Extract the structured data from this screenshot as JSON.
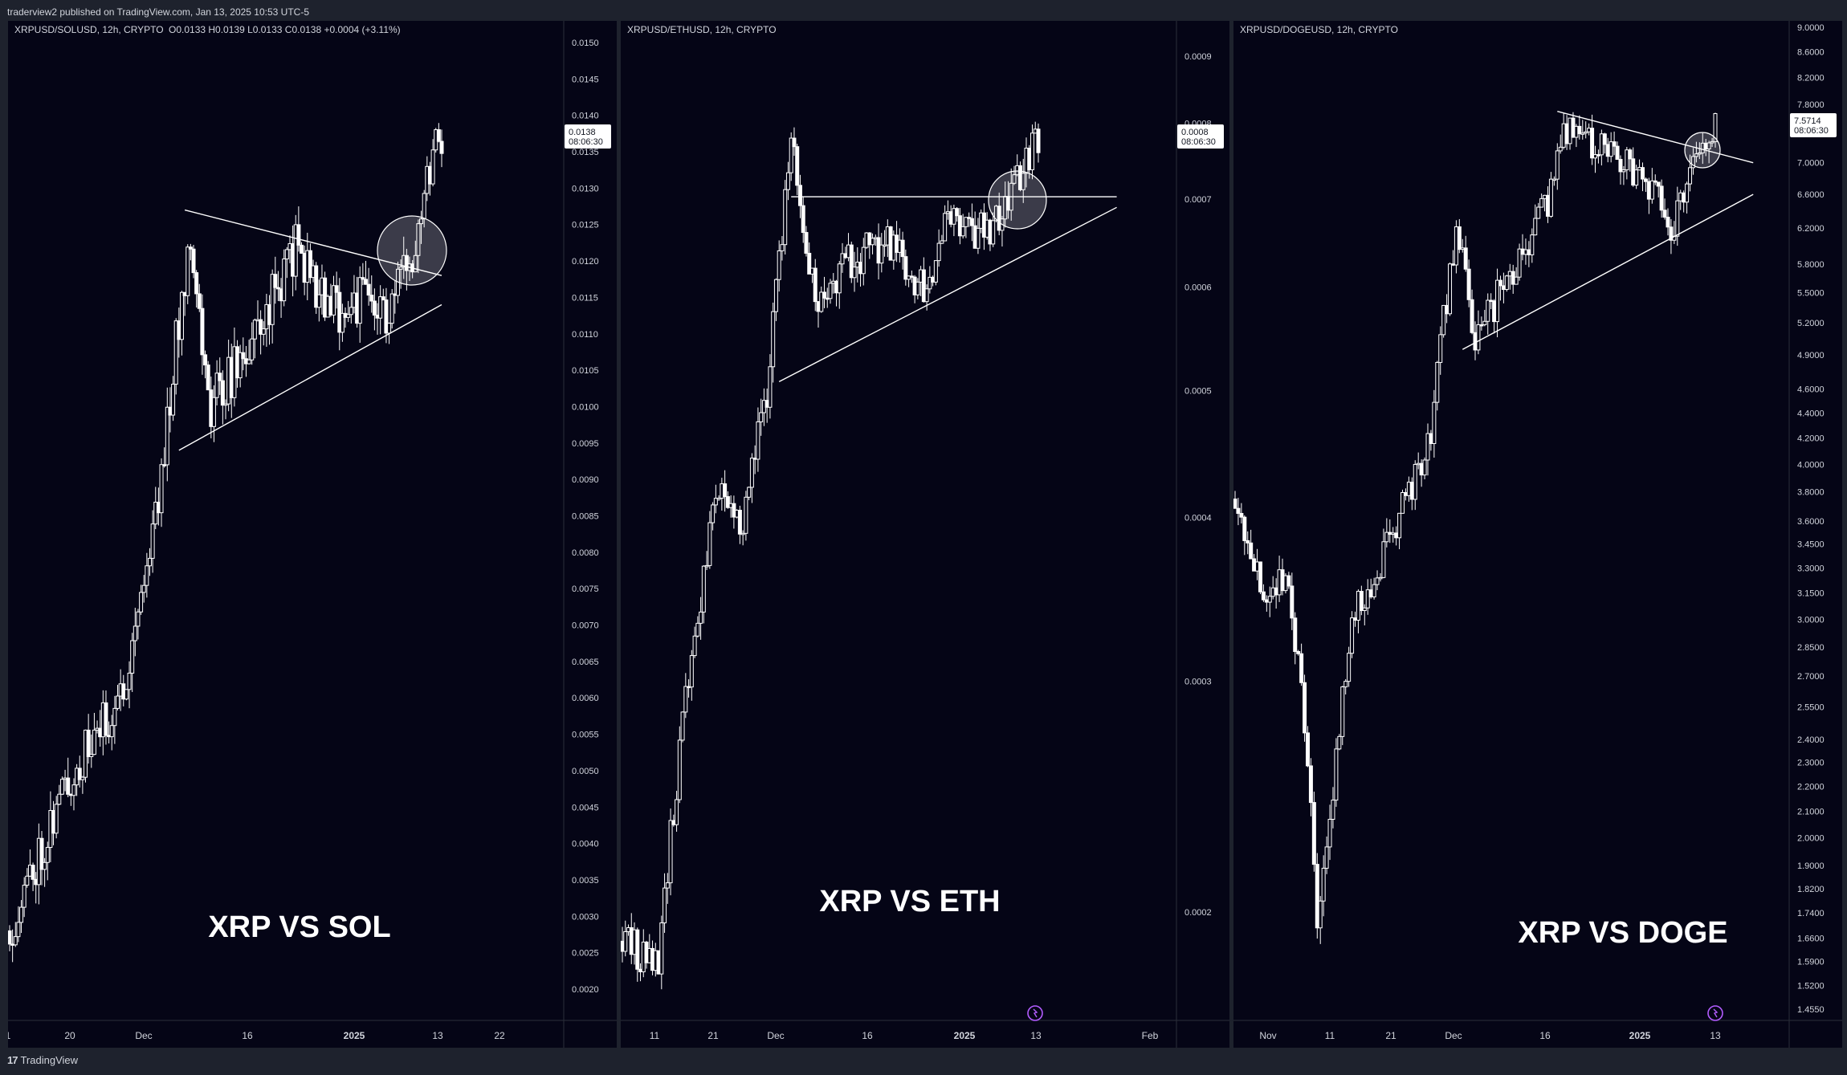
{
  "publisher_line": "traderview2 published on TradingView.com, Jan 13, 2025 10:53 UTC-5",
  "footer_brand": "TradingView",
  "colors": {
    "pane_bg": "#050516",
    "frame_bg": "#1e222d",
    "candle": "#ffffff",
    "text": "#d1d4dc",
    "axis_line": "#2a2e39",
    "badge_bg": "#ffffff",
    "badge_text": "#131722",
    "highlight_circle": "rgba(255,255,255,0.22)",
    "replay_icon": "#b25cff"
  },
  "panes": [
    {
      "header": "XRPUSD/SOLUSD, 12h, CRYPTO",
      "ohlc": {
        "o": "O0.0133",
        "h": "H0.0139",
        "l": "L0.0133",
        "c": "C0.0138",
        "chg": "+0.0004 (+3.11%)"
      },
      "label": "XRP VS SOL",
      "price_badge": {
        "price": "0.0138",
        "timer": "08:06:30"
      },
      "y_ticks": [
        "0.0150",
        "0.0145",
        "0.0140",
        "0.0135",
        "0.0130",
        "0.0125",
        "0.0120",
        "0.0115",
        "0.0110",
        "0.0105",
        "0.0100",
        "0.0095",
        "0.0090",
        "0.0085",
        "0.0080",
        "0.0075",
        "0.0070",
        "0.0065",
        "0.0060",
        "0.0055",
        "0.0050",
        "0.0045",
        "0.0040",
        "0.0035",
        "0.0030",
        "0.0025",
        "0.0020"
      ],
      "x_ticks": [
        "1",
        "20",
        "Dec",
        "16",
        "2025",
        "13",
        "22"
      ],
      "bold_x_tick": "2025",
      "show_replay_icon": false
    },
    {
      "header": "XRPUSD/ETHUSD, 12h, CRYPTO",
      "label": "XRP VS ETH",
      "price_badge": {
        "price": "0.0008",
        "timer": "08:06:30"
      },
      "y_ticks": [
        "0.0009",
        "0.0008",
        "0.0007",
        "0.0006",
        "0.0005",
        "0.0004",
        "0.0003",
        "0.0002"
      ],
      "x_ticks": [
        "11",
        "21",
        "Dec",
        "16",
        "2025",
        "13",
        "Feb"
      ],
      "bold_x_tick": "2025",
      "show_replay_icon": true
    },
    {
      "header": "XRPUSD/DOGEUSD, 12h, CRYPTO",
      "label": "XRP VS DOGE",
      "price_badge": {
        "price": "7.5714",
        "timer": "08:06:30"
      },
      "y_ticks": [
        "9.0000",
        "8.6000",
        "8.2000",
        "7.8000",
        "7.0000",
        "6.6000",
        "6.2000",
        "5.8000",
        "5.5000",
        "5.2000",
        "4.9000",
        "4.6000",
        "4.4000",
        "4.2000",
        "4.0000",
        "3.8000",
        "3.6000",
        "3.4500",
        "3.3000",
        "3.1500",
        "3.0000",
        "2.8500",
        "2.7000",
        "2.5500",
        "2.4000",
        "2.3000",
        "2.2000",
        "2.1000",
        "2.0000",
        "1.9000",
        "1.8200",
        "1.7400",
        "1.6600",
        "1.5900",
        "1.5200",
        "1.4550"
      ],
      "x_ticks": [
        "Nov",
        "11",
        "21",
        "Dec",
        "16",
        "2025",
        "13"
      ],
      "bold_x_tick": "2025",
      "show_replay_icon": true
    }
  ],
  "chart_data": [
    {
      "type": "candlestick",
      "title": "XRPUSD/SOLUSD, 12h, CRYPTO",
      "ylim": [
        0.0015,
        0.0155
      ],
      "approx_close_path": [
        [
          "Nov 1",
          0.0028
        ],
        [
          "Nov 10",
          0.0047
        ],
        [
          "Nov 20",
          0.006
        ],
        [
          "Nov 26",
          0.0085
        ],
        [
          "Dec 2",
          0.0125
        ],
        [
          "Dec 5",
          0.01
        ],
        [
          "Dec 12",
          0.0108
        ],
        [
          "Dec 16",
          0.0115
        ],
        [
          "Dec 20",
          0.0122
        ],
        [
          "Dec 26",
          0.0113
        ],
        [
          "Jan 1",
          0.0115
        ],
        [
          "Jan 5",
          0.0112
        ],
        [
          "Jan 9",
          0.0122
        ],
        [
          "Jan 13",
          0.0138
        ]
      ],
      "annotations": [
        {
          "kind": "trendline",
          "from": [
            "Dec 1",
            0.0127
          ],
          "to": [
            "Jan 14",
            0.0118
          ]
        },
        {
          "kind": "trendline",
          "from": [
            "Nov 30",
            0.0094
          ],
          "to": [
            "Jan 14",
            0.0114
          ]
        },
        {
          "kind": "circle",
          "center": [
            "Jan 10",
            0.0121
          ]
        }
      ]
    },
    {
      "type": "candlestick",
      "title": "XRPUSD/ETHUSD, 12h, CRYPTO",
      "ylim": [
        0.00015,
        0.00095
      ],
      "approx_close_path": [
        [
          "Nov 5",
          0.00019
        ],
        [
          "Nov 10",
          0.00018
        ],
        [
          "Nov 15",
          0.0003
        ],
        [
          "Nov 20",
          0.00042
        ],
        [
          "Nov 24",
          0.0004
        ],
        [
          "Nov 28",
          0.0005
        ],
        [
          "Dec 2",
          0.00077
        ],
        [
          "Dec 6",
          0.00058
        ],
        [
          "Dec 12",
          0.00063
        ],
        [
          "Dec 18",
          0.00065
        ],
        [
          "Dec 24",
          0.0006
        ],
        [
          "Dec 28",
          0.00067
        ],
        [
          "Jan 3",
          0.00066
        ],
        [
          "Jan 8",
          0.00071
        ],
        [
          "Jan 13",
          0.0008
        ]
      ],
      "annotations": [
        {
          "kind": "horizontal",
          "level": 0.000703
        },
        {
          "kind": "trendline",
          "from": [
            "Nov 30",
            0.000508
          ],
          "to": [
            "Jan 25",
            0.00069
          ]
        },
        {
          "kind": "circle",
          "center": [
            "Jan 10",
            0.00071
          ]
        }
      ]
    },
    {
      "type": "candlestick",
      "title": "XRPUSD/DOGEUSD, 12h, CRYPTO",
      "y_scale": "log",
      "ylim": [
        1.4,
        9.2
      ],
      "approx_close_path": [
        [
          "Oct 28",
          3.75
        ],
        [
          "Nov 2",
          3.0
        ],
        [
          "Nov 5",
          3.3
        ],
        [
          "Nov 7",
          2.8
        ],
        [
          "Nov 10",
          1.72
        ],
        [
          "Nov 12",
          2.1
        ],
        [
          "Nov 16",
          3.05
        ],
        [
          "Nov 22",
          3.5
        ],
        [
          "Nov 28",
          4.2
        ],
        [
          "Dec 2",
          6.2
        ],
        [
          "Dec 5",
          5.1
        ],
        [
          "Dec 10",
          5.6
        ],
        [
          "Dec 16",
          6.4
        ],
        [
          "Dec 20",
          7.6
        ],
        [
          "Dec 26",
          7.1
        ],
        [
          "Jan 1",
          6.8
        ],
        [
          "Jan 5",
          6.2
        ],
        [
          "Jan 9",
          7.2
        ],
        [
          "Jan 13",
          7.57
        ]
      ],
      "annotations": [
        {
          "kind": "trendline",
          "from": [
            "Dec 18",
            7.7
          ],
          "to": [
            "Jan 18",
            7.0
          ]
        },
        {
          "kind": "trendline",
          "from": [
            "Dec 3",
            4.95
          ],
          "to": [
            "Jan 18",
            6.6
          ]
        },
        {
          "kind": "circle",
          "center": [
            "Jan 10",
            7.2
          ]
        }
      ]
    }
  ]
}
